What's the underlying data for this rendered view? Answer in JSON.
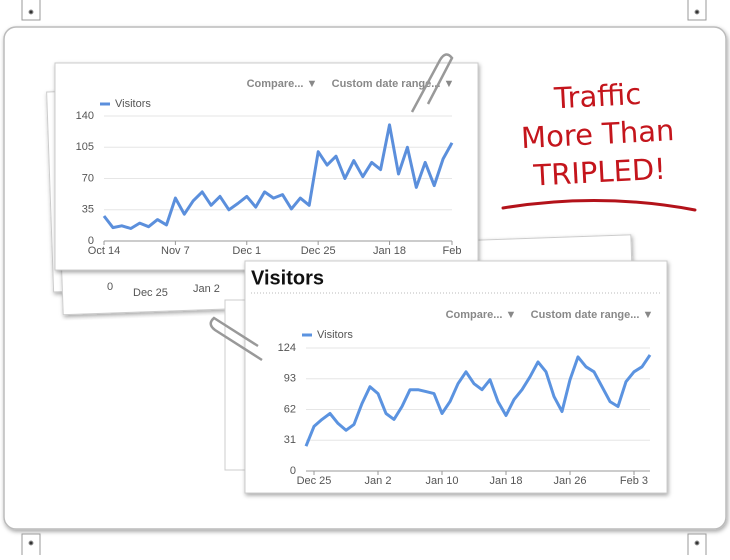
{
  "chart_data": [
    {
      "type": "line",
      "buttons": [
        "Compare... ▼",
        "Custom date range... ▼"
      ],
      "categories": [
        "Oct 14",
        null,
        null,
        null,
        null,
        null,
        null,
        null,
        "Nov 7",
        null,
        null,
        null,
        null,
        null,
        null,
        null,
        "Dec 1",
        null,
        null,
        null,
        null,
        null,
        null,
        null,
        "Dec 25",
        null,
        null,
        null,
        null,
        null,
        null,
        null,
        "Jan 18",
        null,
        null,
        null,
        null,
        null,
        null,
        "Feb"
      ],
      "series": [
        {
          "name": "Visitors",
          "color": "#5b8fdc",
          "values": [
            28,
            15,
            17,
            14,
            20,
            16,
            24,
            18,
            48,
            30,
            45,
            55,
            40,
            50,
            35,
            42,
            50,
            38,
            55,
            48,
            52,
            36,
            48,
            40,
            100,
            85,
            95,
            70,
            90,
            72,
            88,
            80,
            130,
            75,
            105,
            60,
            88,
            62,
            92,
            110
          ]
        }
      ],
      "ylim": [
        0,
        140
      ],
      "yticks": [
        0,
        35,
        70,
        105,
        140
      ],
      "grid": true
    },
    {
      "type": "line",
      "title": "Visitors",
      "buttons": [
        "Compare... ▼",
        "Custom date range... ▼"
      ],
      "categories": [
        null,
        "Dec 25",
        null,
        null,
        null,
        null,
        null,
        null,
        null,
        "Jan 2",
        null,
        null,
        null,
        null,
        null,
        null,
        null,
        "Jan 10",
        null,
        null,
        null,
        null,
        null,
        null,
        null,
        "Jan 18",
        null,
        null,
        null,
        null,
        null,
        null,
        null,
        "Jan 26",
        null,
        null,
        null,
        null,
        null,
        null,
        null,
        "Feb 3",
        null,
        null
      ],
      "series": [
        {
          "name": "Visitors",
          "color": "#5b93e0",
          "values": [
            25,
            45,
            52,
            58,
            48,
            41,
            47,
            68,
            85,
            78,
            58,
            52,
            65,
            82,
            82,
            80,
            78,
            58,
            70,
            88,
            100,
            88,
            82,
            92,
            70,
            56,
            72,
            82,
            95,
            110,
            100,
            75,
            60,
            92,
            115,
            105,
            100,
            85,
            70,
            65,
            90,
            100,
            105,
            117
          ]
        }
      ],
      "ylim": [
        0,
        124
      ],
      "yticks": [
        0,
        31,
        62,
        93,
        124
      ],
      "grid": true
    }
  ],
  "background_card": {
    "labels": [
      "0",
      "Dec 25",
      "Jan 2"
    ]
  },
  "annotation": {
    "lines": [
      "Traffic",
      "More Than",
      "TRIPLED!"
    ]
  }
}
